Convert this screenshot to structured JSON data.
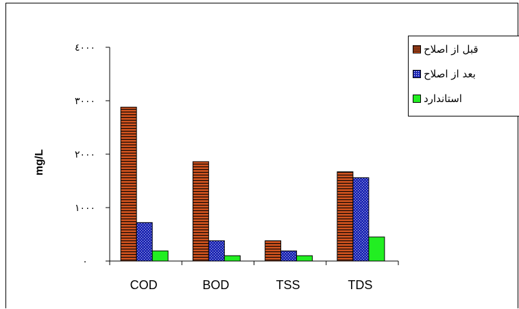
{
  "chart_data": {
    "type": "bar",
    "title": "",
    "xlabel": "",
    "ylabel": "mg/L",
    "ylim": [
      0,
      4000
    ],
    "yticks": [
      0,
      1000,
      2000,
      3000,
      4000
    ],
    "ytick_labels": [
      "٠",
      "١٠٠٠",
      "٢٠٠٠",
      "٣٠٠٠",
      "٤٠٠٠"
    ],
    "categories": [
      "COD",
      "BOD",
      "TSS",
      "TDS"
    ],
    "series": [
      {
        "name": "قبل از اصلاح",
        "color": "#c8501e",
        "pattern": "horizontal-stripes",
        "values": [
          2880,
          1860,
          380,
          1670
        ]
      },
      {
        "name": "بعد از اصلاح",
        "color": "#1e28b4",
        "pattern": "dots",
        "values": [
          720,
          380,
          190,
          1560
        ]
      },
      {
        "name": "استاندارد",
        "color": "#22ee22",
        "pattern": "solid",
        "values": [
          190,
          100,
          100,
          450
        ]
      }
    ],
    "grid": false,
    "legend_position": "top-right"
  }
}
